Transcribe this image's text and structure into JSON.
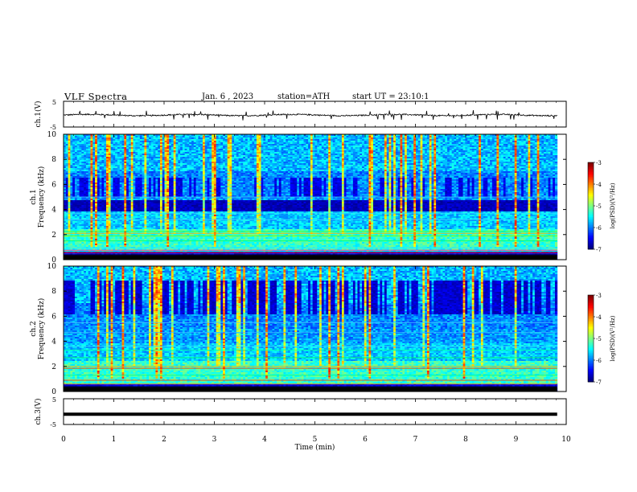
{
  "header": {
    "title": "VLF Spectra",
    "date": "Jan. 6 , 2023",
    "station": "station=ATH",
    "start": "start UT = 23:10:1"
  },
  "chart_data": [
    {
      "type": "line",
      "ylabel": "ch.1(V)",
      "ylim": [
        -5,
        5
      ],
      "yticks": [
        "5",
        "-5"
      ],
      "xlim": [
        0,
        10
      ],
      "series": [
        {
          "values": "noisy waveform near -0.3 V with occasional spikes to about +1 V",
          "color": "#000000"
        }
      ]
    },
    {
      "type": "heatmap",
      "ylabel": [
        "ch.1",
        "Frequency (kHz)"
      ],
      "ylim": [
        0,
        10
      ],
      "yticks": [
        "0",
        "2",
        "4",
        "6",
        "8",
        "10"
      ],
      "xlim": [
        0,
        10
      ],
      "colorbar": {
        "label": "log(PSD)(V²/Hz)",
        "ticks": [
          "-3",
          "-4",
          "-5",
          "-6",
          "-7"
        ],
        "range": [
          -7,
          -3
        ]
      },
      "description": "broadband sferics as vertical streaks; dark quiet band 3.8-4.8 kHz; persistent horizontal lines below 2.5 kHz"
    },
    {
      "type": "heatmap",
      "ylabel": [
        "ch.2",
        "Frequency (kHz)"
      ],
      "ylim": [
        0,
        10
      ],
      "yticks": [
        "0",
        "2",
        "4",
        "6",
        "8",
        "10"
      ],
      "xlim": [
        0,
        10
      ],
      "colorbar": {
        "label": "log(PSD)(V²/Hz)",
        "ticks": [
          "-3",
          "-4",
          "-5",
          "-6",
          "-7"
        ],
        "range": [
          -7,
          -3
        ]
      },
      "description": "similar to ch.1 with dark region 6-9 kHz and strong lines near 1.8-2.0 kHz"
    },
    {
      "type": "line",
      "ylabel": "ch.3(V)",
      "ylim": [
        -5,
        5
      ],
      "yticks": [
        "5",
        "-5"
      ],
      "xlim": [
        0,
        10
      ],
      "series": [
        {
          "values": "constant near -1 V",
          "color": "#000000"
        }
      ]
    }
  ],
  "xaxis": {
    "label": "Time (min)",
    "ticks": [
      "0",
      "1",
      "2",
      "3",
      "4",
      "5",
      "6",
      "7",
      "8",
      "9",
      "10"
    ]
  }
}
